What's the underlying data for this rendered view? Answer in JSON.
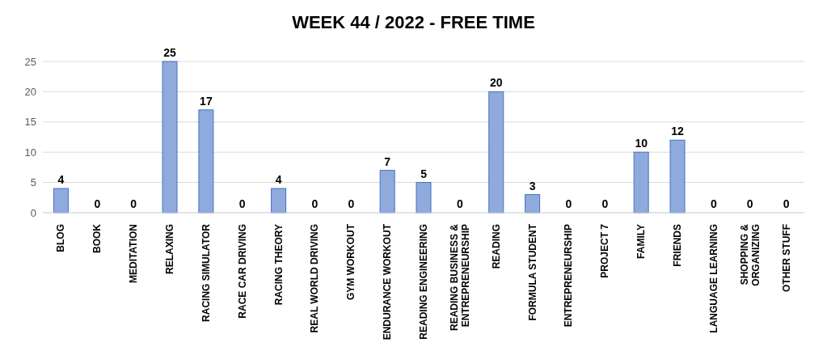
{
  "chart_data": {
    "type": "bar",
    "title": "WEEK 44 / 2022 - FREE TIME",
    "categories": [
      "BLOG",
      "BOOK",
      "MEDITATION",
      "RELAXING",
      "RACING SIMULATOR",
      "RACE CAR DRIVING",
      "RACING THEORY",
      "REAL WORLD DRIVING",
      "GYM WORKOUT",
      "ENDURANCE WORKOUT",
      "READING ENGINEERING",
      "READING BUSINESS & ENTREPRENEURSHIP",
      "READING",
      "FORMULA STUDENT",
      "ENTREPRENEURSHIP",
      "PROJECT 7",
      "FAMILY",
      "FRIENDS",
      "LANGUAGE LEARNING",
      "SHOPPING & ORGANIZING",
      "OTHER STUFF"
    ],
    "values": [
      4,
      0,
      0,
      25,
      17,
      0,
      4,
      0,
      0,
      7,
      5,
      0,
      20,
      3,
      0,
      0,
      10,
      12,
      0,
      0,
      0
    ],
    "color": "#8faadc",
    "ylim": [
      0,
      25
    ],
    "yticks": [
      0,
      5,
      10,
      15,
      20,
      25
    ],
    "grid": "y",
    "data_labels": true
  }
}
